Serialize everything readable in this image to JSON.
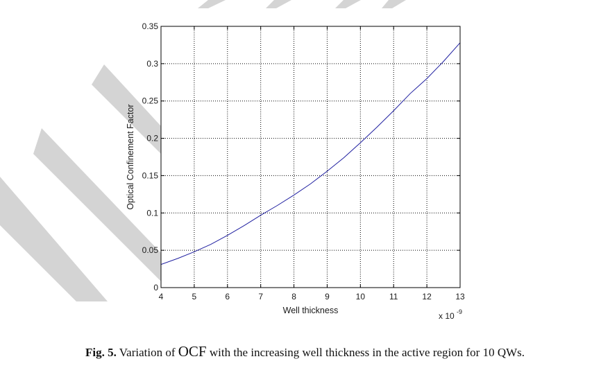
{
  "chart_data": {
    "type": "line",
    "xlabel": "Well thickness",
    "ylabel": "Optical Confinement Factor",
    "x_multiplier_label": "x 10",
    "x_multiplier_exponent": "-9",
    "xlim": [
      4,
      13
    ],
    "ylim": [
      0,
      0.35
    ],
    "x_ticks": [
      "4",
      "5",
      "6",
      "7",
      "8",
      "9",
      "10",
      "11",
      "12",
      "13"
    ],
    "y_ticks": [
      "0",
      "0.05",
      "0.1",
      "0.15",
      "0.2",
      "0.25",
      "0.3",
      "0.35"
    ],
    "grid": true,
    "grid_style": "dotted",
    "series": [
      {
        "color": "#1f1fa0",
        "x": [
          4,
          4.5,
          5,
          5.5,
          6,
          6.5,
          7,
          7.5,
          8,
          8.5,
          9,
          9.5,
          10,
          10.5,
          11,
          11.5,
          12,
          12.5,
          13
        ],
        "y": [
          0.031,
          0.039,
          0.048,
          0.058,
          0.07,
          0.083,
          0.097,
          0.11,
          0.124,
          0.139,
          0.156,
          0.174,
          0.194,
          0.215,
          0.237,
          0.26,
          0.28,
          0.303,
          0.328
        ]
      }
    ]
  },
  "caption": {
    "label": "Fig. 5.",
    "text_before": " Variation of ",
    "ocf": "OCF",
    "text_after": " with the increasing well thickness in the active region for 10 QWs."
  },
  "colors": {
    "line": "#1f1fa0",
    "watermark": "#d4d4d4"
  }
}
